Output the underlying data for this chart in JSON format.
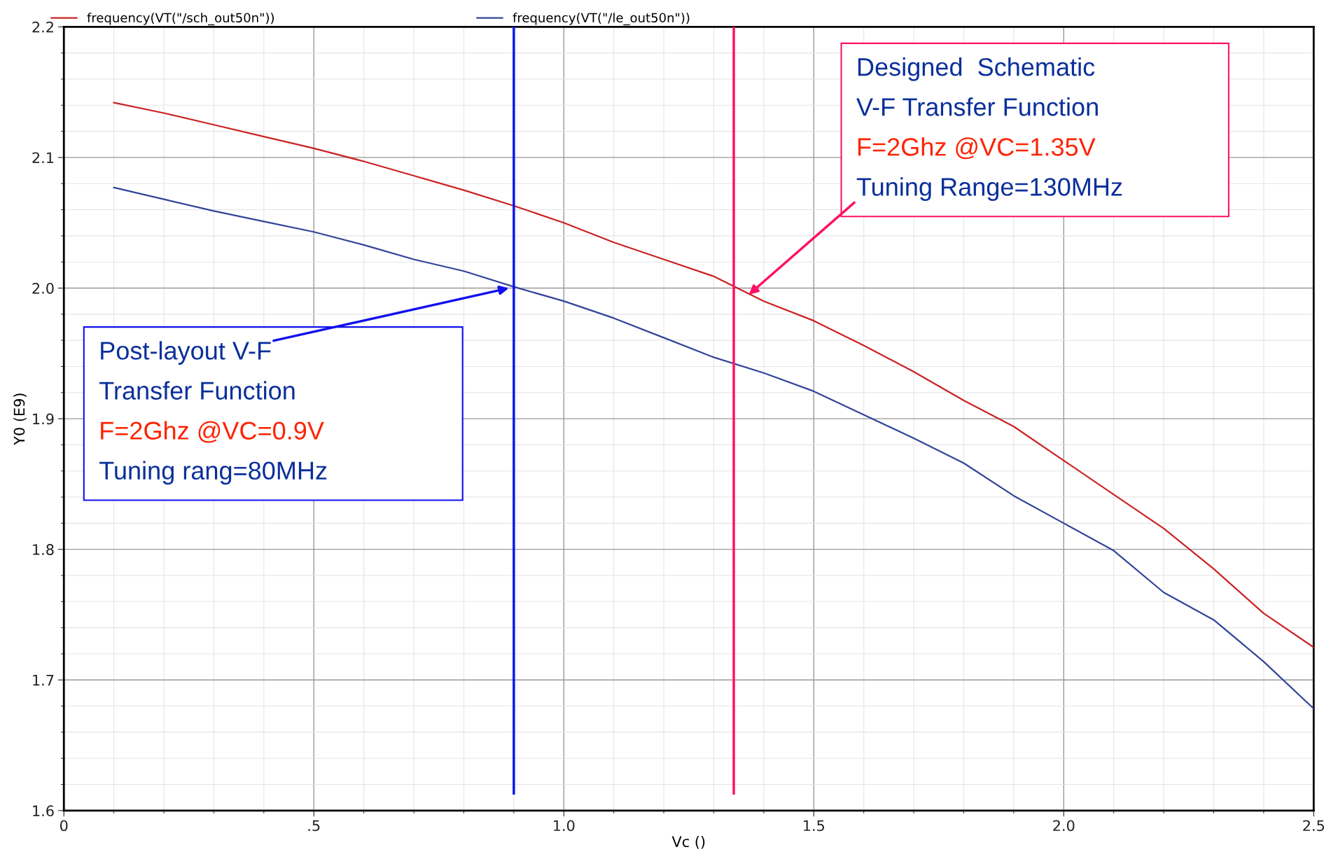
{
  "chart_data": {
    "type": "line",
    "xlabel": "Vc ()",
    "ylabel": "Y0 (E9)",
    "x": [
      0.1,
      0.2,
      0.3,
      0.4,
      0.5,
      0.6,
      0.7,
      0.8,
      0.9,
      1.0,
      1.1,
      1.2,
      1.3,
      1.4,
      1.5,
      1.6,
      1.7,
      1.8,
      1.9,
      2.0,
      2.1,
      2.2,
      2.3,
      2.4,
      2.5
    ],
    "series": [
      {
        "name": "frequency(VT(\"/sch_out50n\"))",
        "color": "#cc2222",
        "values": [
          2.142,
          2.134,
          2.125,
          2.116,
          2.107,
          2.097,
          2.086,
          2.075,
          2.063,
          2.05,
          2.035,
          2.022,
          2.009,
          1.99,
          1.975,
          1.956,
          1.936,
          1.914,
          1.894,
          1.868,
          1.842,
          1.816,
          1.785,
          1.751,
          1.725
        ]
      },
      {
        "name": "frequency(VT(\"/le_out50n\"))",
        "color": "#334499",
        "values": [
          2.077,
          2.068,
          2.059,
          2.051,
          2.043,
          2.033,
          2.022,
          2.013,
          2.001,
          1.99,
          1.977,
          1.962,
          1.947,
          1.935,
          1.921,
          1.903,
          1.885,
          1.866,
          1.841,
          1.82,
          1.799,
          1.767,
          1.746,
          1.714,
          1.678
        ]
      }
    ],
    "xlim": [
      0,
      2.5
    ],
    "ylim": [
      1.6,
      2.2
    ],
    "xticks": [
      0,
      {
        "value": 0.5,
        "label": ".5"
      },
      {
        "value": 1,
        "label": "1.0"
      },
      {
        "value": 1.5,
        "label": "1.5"
      },
      {
        "value": 2,
        "label": "2.0"
      },
      {
        "value": 2.5,
        "label": "2.5"
      }
    ],
    "yticks": [
      1.6,
      1.7,
      1.8,
      1.9,
      {
        "value": 2,
        "label": "2.0"
      },
      2.1,
      2.2
    ],
    "ref_lines": [
      {
        "axis": "x",
        "value": 0.9,
        "color": "#0a14f0"
      },
      {
        "axis": "x",
        "value": 1.34,
        "color": "#ff1166"
      }
    ],
    "annotations": [
      {
        "text": "Post-layout V-F\nTransfer Function\nF=2Ghz @VC=0.9V\nTuning rang=80MHz",
        "x": 0.89,
        "y": 2.0
      },
      {
        "text": "Designed  Schematic\nV-F Transfer Function\nF=2Ghz @VC=1.35V\nTuning Range=130MHz",
        "x": 1.37,
        "y": 1.995
      }
    ],
    "grid": true,
    "legend": "top",
    "marker": "none",
    "line_style": "solid"
  }
}
